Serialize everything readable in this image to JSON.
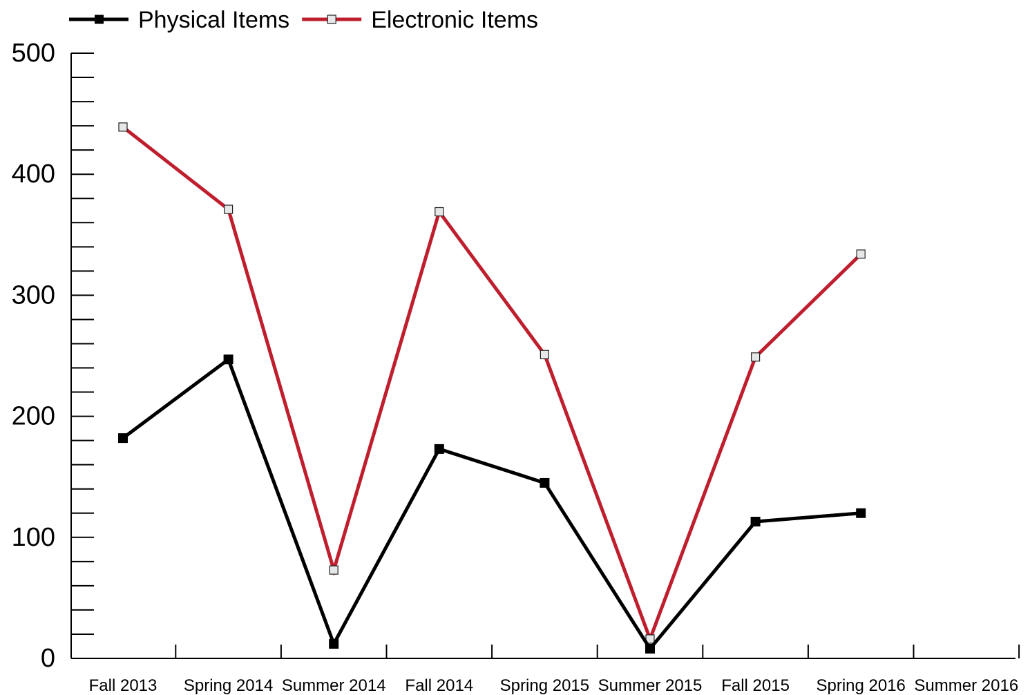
{
  "chart_data": {
    "type": "line",
    "title": "",
    "xlabel": "",
    "ylabel": "",
    "categories": [
      "Fall 2013",
      "Spring 2014",
      "Summer 2014",
      "Fall 2014",
      "Spring 2015",
      "Summer 2015",
      "Fall 2015",
      "Spring 2016",
      "Summer 2016"
    ],
    "ylim": [
      0,
      500
    ],
    "y_ticks": [
      "0",
      "100",
      "200",
      "300",
      "400",
      "500"
    ],
    "grid": false,
    "legend_position": "top-left",
    "series": [
      {
        "name": "Physical Items",
        "color": "#000000",
        "marker": "filled-square",
        "values": [
          182,
          247,
          12,
          173,
          145,
          8,
          113,
          120,
          null
        ]
      },
      {
        "name": "Electronic Items",
        "color": "#BE1E2D",
        "marker": "hollow-square",
        "values": [
          439,
          371,
          73,
          369,
          251,
          16,
          249,
          334,
          null
        ]
      }
    ]
  }
}
